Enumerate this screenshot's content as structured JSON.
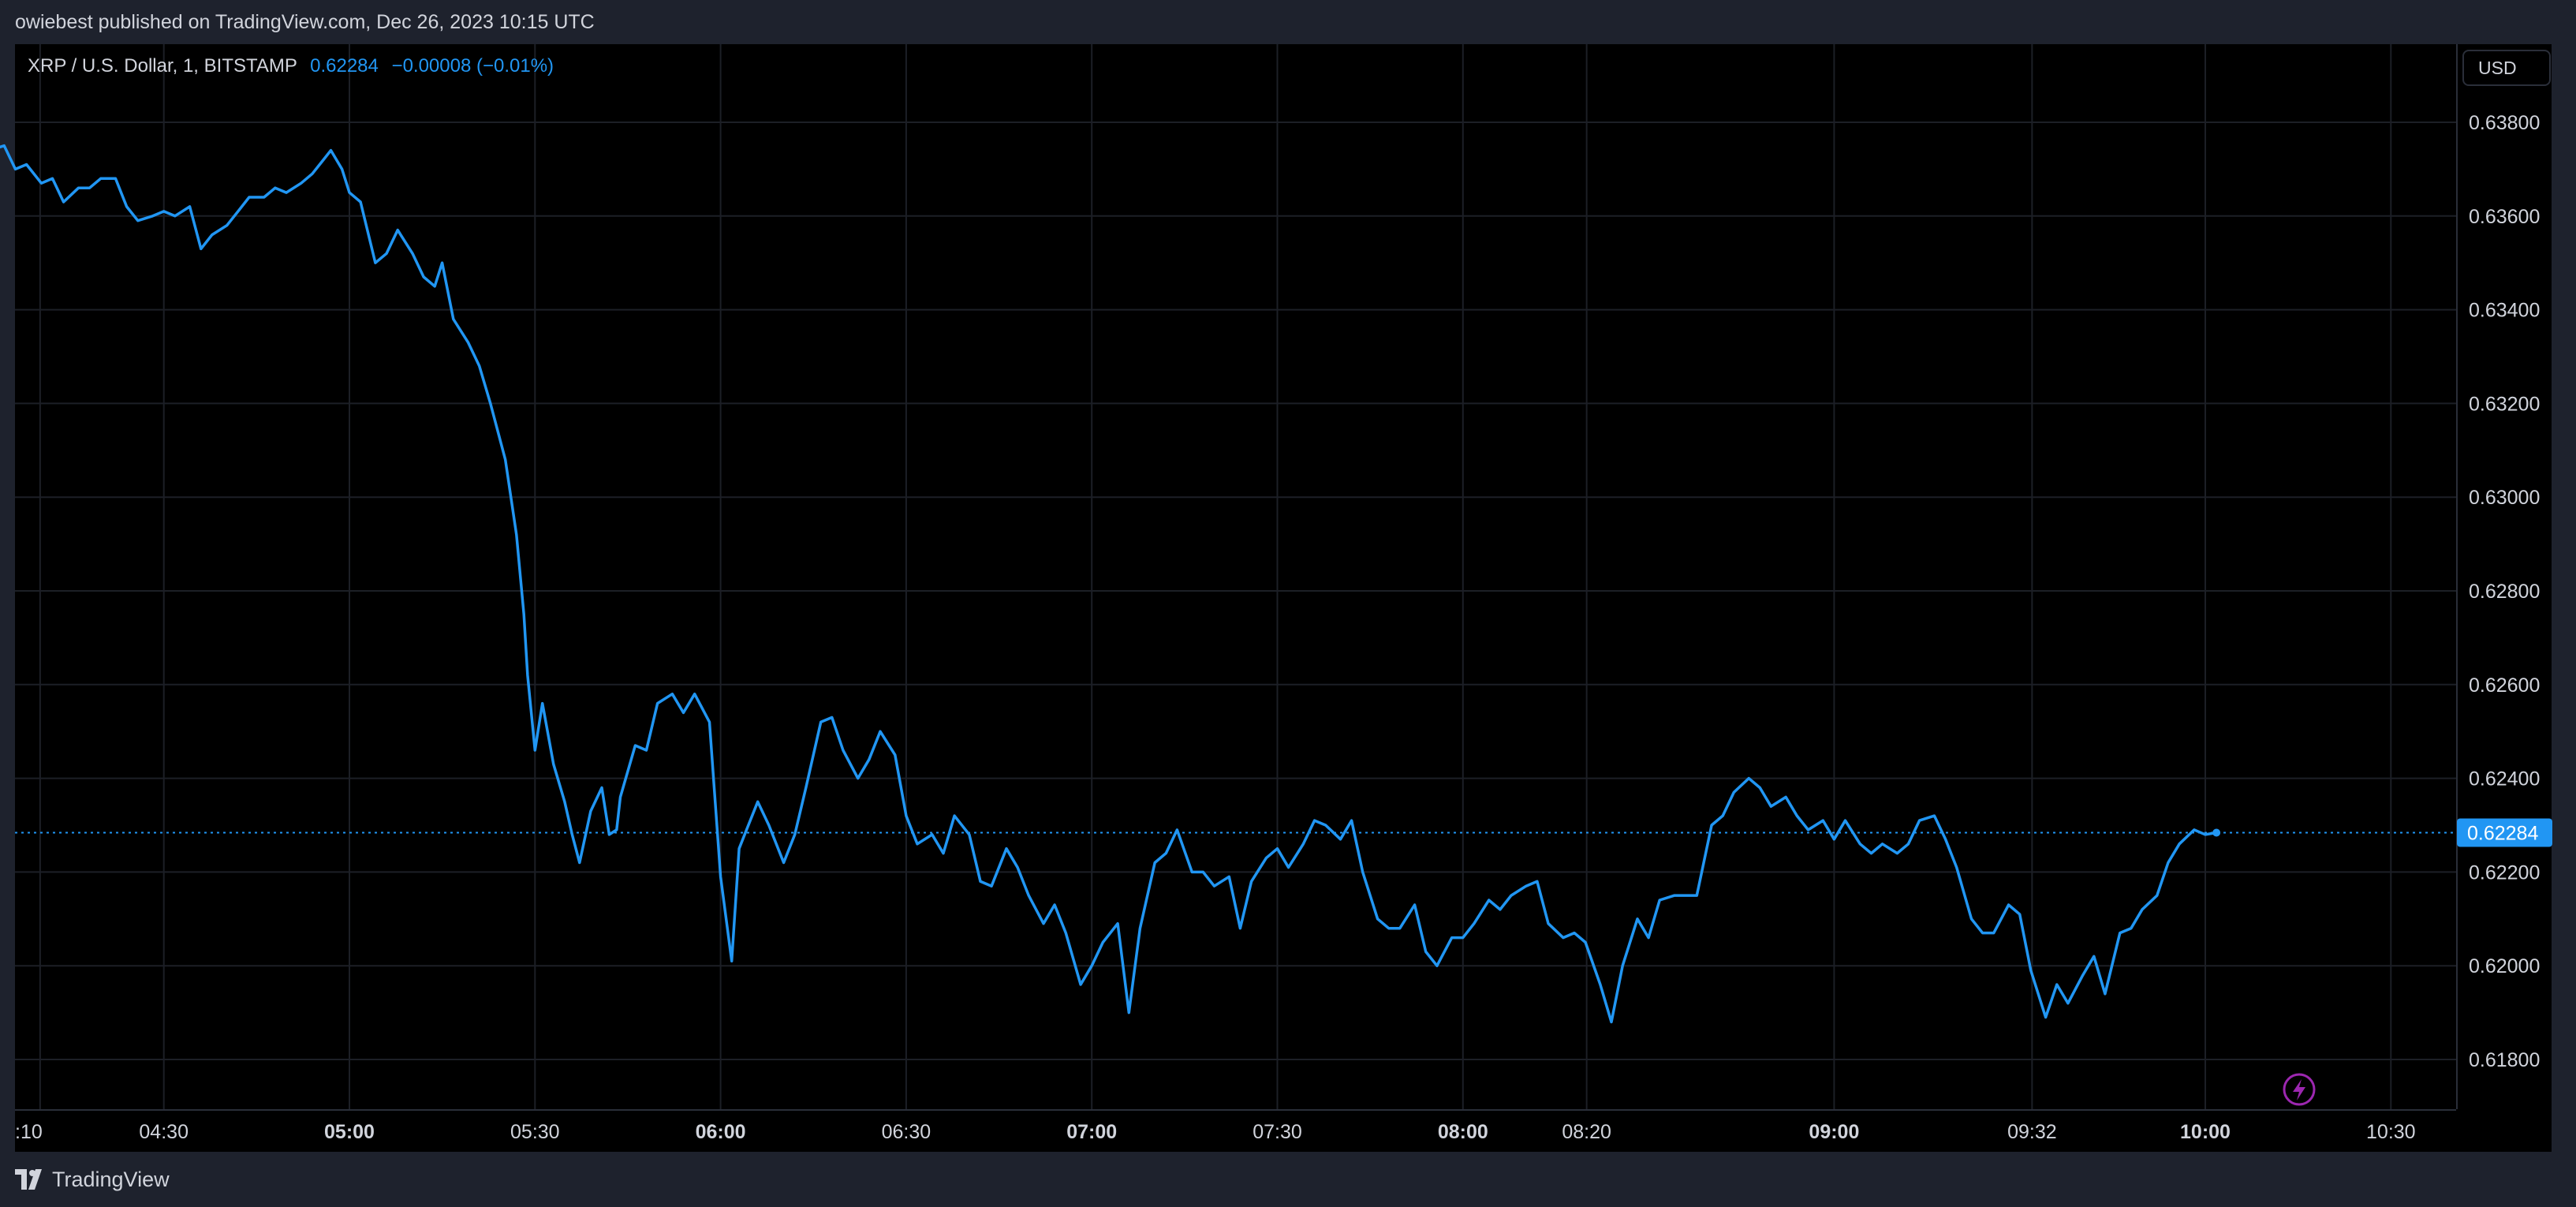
{
  "header": {
    "published": "owiebest published on TradingView.com, Dec 26, 2023 10:15 UTC"
  },
  "legend": {
    "symbol": "XRP / U.S. Dollar, 1, BITSTAMP",
    "last": "0.62284",
    "change": "−0.00008 (−0.01%)"
  },
  "currency": "USD",
  "footer": {
    "brand": "TradingView"
  },
  "colors": {
    "line": "#2196f3",
    "background": "#000000",
    "grid": "#1c1f26",
    "text": "#d1d4dc"
  },
  "chart_data": {
    "type": "line",
    "title": "XRP / U.S. Dollar, 1, BITSTAMP",
    "ylim": [
      0.617,
      0.6395
    ],
    "grid": true,
    "last_price": 0.62284,
    "last_price_label": "0.62284",
    "y_ticks": [
      0.638,
      0.636,
      0.634,
      0.632,
      0.63,
      0.628,
      0.626,
      0.624,
      0.622,
      0.62,
      0.618
    ],
    "y_tick_labels": [
      "0.63800",
      "0.63600",
      "0.63400",
      "0.63200",
      "0.63000",
      "0.62800",
      "0.62600",
      "0.62400",
      "0.62200",
      "0.62000",
      "0.61800"
    ],
    "x_ticks": [
      {
        "label": ":10",
        "x": 4.1667,
        "bold": false
      },
      {
        "label": "04:30",
        "x": 4.5,
        "bold": false
      },
      {
        "label": "05:00",
        "x": 5.0,
        "bold": true
      },
      {
        "label": "05:30",
        "x": 5.5,
        "bold": false
      },
      {
        "label": "06:00",
        "x": 6.0,
        "bold": true
      },
      {
        "label": "06:30",
        "x": 6.5,
        "bold": false
      },
      {
        "label": "07:00",
        "x": 7.0,
        "bold": true
      },
      {
        "label": "07:30",
        "x": 7.5,
        "bold": false
      },
      {
        "label": "08:00",
        "x": 8.0,
        "bold": true
      },
      {
        "label": "08:20",
        "x": 8.3333,
        "bold": false
      },
      {
        "label": "09:00",
        "x": 9.0,
        "bold": true
      },
      {
        "label": "09:32",
        "x": 9.5333,
        "bold": false
      },
      {
        "label": "10:00",
        "x": 10.0,
        "bold": true
      },
      {
        "label": "10:30",
        "x": 10.5,
        "bold": false
      }
    ],
    "series": [
      {
        "values": [
          [
            4.0,
            0.6379
          ],
          [
            4.03,
            0.6374
          ],
          [
            4.07,
            0.6375
          ],
          [
            4.1,
            0.637
          ],
          [
            4.13,
            0.6371
          ],
          [
            4.17,
            0.6367
          ],
          [
            4.2,
            0.6368
          ],
          [
            4.23,
            0.6363
          ],
          [
            4.27,
            0.6366
          ],
          [
            4.3,
            0.6366
          ],
          [
            4.33,
            0.6368
          ],
          [
            4.37,
            0.6368
          ],
          [
            4.4,
            0.6362
          ],
          [
            4.43,
            0.6359
          ],
          [
            4.47,
            0.636
          ],
          [
            4.5,
            0.6361
          ],
          [
            4.53,
            0.636
          ],
          [
            4.57,
            0.6362
          ],
          [
            4.6,
            0.6353
          ],
          [
            4.63,
            0.6356
          ],
          [
            4.67,
            0.6358
          ],
          [
            4.7,
            0.6361
          ],
          [
            4.73,
            0.6364
          ],
          [
            4.77,
            0.6364
          ],
          [
            4.8,
            0.6366
          ],
          [
            4.83,
            0.6365
          ],
          [
            4.87,
            0.6367
          ],
          [
            4.9,
            0.6369
          ],
          [
            4.93,
            0.6372
          ],
          [
            4.95,
            0.6374
          ],
          [
            4.98,
            0.637
          ],
          [
            5.0,
            0.6365
          ],
          [
            5.03,
            0.6363
          ],
          [
            5.07,
            0.635
          ],
          [
            5.1,
            0.6352
          ],
          [
            5.13,
            0.6357
          ],
          [
            5.17,
            0.6352
          ],
          [
            5.2,
            0.6347
          ],
          [
            5.23,
            0.6345
          ],
          [
            5.25,
            0.635
          ],
          [
            5.28,
            0.6338
          ],
          [
            5.32,
            0.6333
          ],
          [
            5.35,
            0.6328
          ],
          [
            5.38,
            0.632
          ],
          [
            5.42,
            0.6308
          ],
          [
            5.45,
            0.6292
          ],
          [
            5.47,
            0.6275
          ],
          [
            5.48,
            0.6262
          ],
          [
            5.5,
            0.6246
          ],
          [
            5.52,
            0.6256
          ],
          [
            5.55,
            0.6243
          ],
          [
            5.58,
            0.6235
          ],
          [
            5.6,
            0.6228
          ],
          [
            5.62,
            0.6222
          ],
          [
            5.65,
            0.6233
          ],
          [
            5.68,
            0.6238
          ],
          [
            5.7,
            0.6228
          ],
          [
            5.72,
            0.6229
          ],
          [
            5.73,
            0.6236
          ],
          [
            5.77,
            0.6247
          ],
          [
            5.8,
            0.6246
          ],
          [
            5.83,
            0.6256
          ],
          [
            5.87,
            0.6258
          ],
          [
            5.9,
            0.6254
          ],
          [
            5.93,
            0.6258
          ],
          [
            5.97,
            0.6252
          ],
          [
            6.0,
            0.6219
          ],
          [
            6.03,
            0.6201
          ],
          [
            6.05,
            0.6225
          ],
          [
            6.07,
            0.6229
          ],
          [
            6.1,
            0.6235
          ],
          [
            6.13,
            0.623
          ],
          [
            6.17,
            0.6222
          ],
          [
            6.2,
            0.6228
          ],
          [
            6.23,
            0.6238
          ],
          [
            6.27,
            0.6252
          ],
          [
            6.3,
            0.6253
          ],
          [
            6.33,
            0.6246
          ],
          [
            6.37,
            0.624
          ],
          [
            6.4,
            0.6244
          ],
          [
            6.43,
            0.625
          ],
          [
            6.47,
            0.6245
          ],
          [
            6.5,
            0.6232
          ],
          [
            6.53,
            0.6226
          ],
          [
            6.57,
            0.6228
          ],
          [
            6.6,
            0.6224
          ],
          [
            6.63,
            0.6232
          ],
          [
            6.67,
            0.6228
          ],
          [
            6.7,
            0.6218
          ],
          [
            6.73,
            0.6217
          ],
          [
            6.77,
            0.6225
          ],
          [
            6.8,
            0.6221
          ],
          [
            6.83,
            0.6215
          ],
          [
            6.87,
            0.6209
          ],
          [
            6.9,
            0.6213
          ],
          [
            6.93,
            0.6207
          ],
          [
            6.97,
            0.6196
          ],
          [
            7.0,
            0.62
          ],
          [
            7.03,
            0.6205
          ],
          [
            7.07,
            0.6209
          ],
          [
            7.1,
            0.619
          ],
          [
            7.13,
            0.6208
          ],
          [
            7.17,
            0.6222
          ],
          [
            7.2,
            0.6224
          ],
          [
            7.23,
            0.6229
          ],
          [
            7.27,
            0.622
          ],
          [
            7.3,
            0.622
          ],
          [
            7.33,
            0.6217
          ],
          [
            7.37,
            0.6219
          ],
          [
            7.4,
            0.6208
          ],
          [
            7.43,
            0.6218
          ],
          [
            7.47,
            0.6223
          ],
          [
            7.5,
            0.6225
          ],
          [
            7.53,
            0.6221
          ],
          [
            7.57,
            0.6226
          ],
          [
            7.6,
            0.6231
          ],
          [
            7.63,
            0.623
          ],
          [
            7.67,
            0.6227
          ],
          [
            7.7,
            0.6231
          ],
          [
            7.73,
            0.622
          ],
          [
            7.77,
            0.621
          ],
          [
            7.8,
            0.6208
          ],
          [
            7.83,
            0.6208
          ],
          [
            7.87,
            0.6213
          ],
          [
            7.9,
            0.6203
          ],
          [
            7.93,
            0.62
          ],
          [
            7.97,
            0.6206
          ],
          [
            8.0,
            0.6206
          ],
          [
            8.03,
            0.6209
          ],
          [
            8.07,
            0.6214
          ],
          [
            8.1,
            0.6212
          ],
          [
            8.13,
            0.6215
          ],
          [
            8.17,
            0.6217
          ],
          [
            8.2,
            0.6218
          ],
          [
            8.23,
            0.6209
          ],
          [
            8.27,
            0.6206
          ],
          [
            8.3,
            0.6207
          ],
          [
            8.33,
            0.6205
          ],
          [
            8.37,
            0.6196
          ],
          [
            8.4,
            0.6188
          ],
          [
            8.43,
            0.62
          ],
          [
            8.47,
            0.621
          ],
          [
            8.5,
            0.6206
          ],
          [
            8.53,
            0.6214
          ],
          [
            8.57,
            0.6215
          ],
          [
            8.6,
            0.6215
          ],
          [
            8.63,
            0.6215
          ],
          [
            8.67,
            0.623
          ],
          [
            8.7,
            0.6232
          ],
          [
            8.73,
            0.6237
          ],
          [
            8.77,
            0.624
          ],
          [
            8.8,
            0.6238
          ],
          [
            8.83,
            0.6234
          ],
          [
            8.87,
            0.6236
          ],
          [
            8.9,
            0.6232
          ],
          [
            8.93,
            0.6229
          ],
          [
            8.97,
            0.6231
          ],
          [
            9.0,
            0.6227
          ],
          [
            9.03,
            0.6231
          ],
          [
            9.07,
            0.6226
          ],
          [
            9.1,
            0.6224
          ],
          [
            9.13,
            0.6226
          ],
          [
            9.17,
            0.6224
          ],
          [
            9.2,
            0.6226
          ],
          [
            9.23,
            0.6231
          ],
          [
            9.27,
            0.6232
          ],
          [
            9.3,
            0.6227
          ],
          [
            9.33,
            0.6221
          ],
          [
            9.37,
            0.621
          ],
          [
            9.4,
            0.6207
          ],
          [
            9.43,
            0.6207
          ],
          [
            9.47,
            0.6213
          ],
          [
            9.5,
            0.6211
          ],
          [
            9.53,
            0.6199
          ],
          [
            9.57,
            0.6189
          ],
          [
            9.6,
            0.6196
          ],
          [
            9.63,
            0.6192
          ],
          [
            9.67,
            0.6198
          ],
          [
            9.7,
            0.6202
          ],
          [
            9.73,
            0.6194
          ],
          [
            9.77,
            0.6207
          ],
          [
            9.8,
            0.6208
          ],
          [
            9.83,
            0.6212
          ],
          [
            9.87,
            0.6215
          ],
          [
            9.9,
            0.6222
          ],
          [
            9.93,
            0.6226
          ],
          [
            9.97,
            0.6229
          ],
          [
            10.0,
            0.6228
          ],
          [
            10.03,
            0.62284
          ]
        ]
      }
    ]
  }
}
